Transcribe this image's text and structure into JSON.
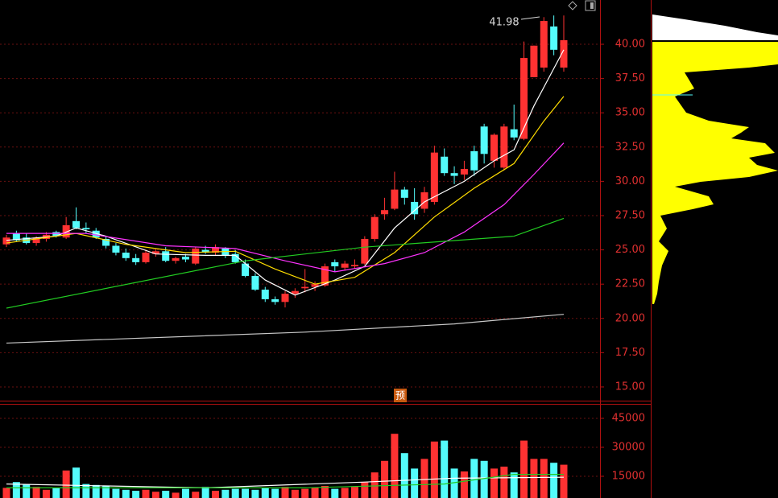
{
  "chart_data": {
    "type": "candlestick",
    "annotation": "41.98",
    "marker": "预",
    "up_color": "#ff3232",
    "down_color": "#54fcfc",
    "ylim": [
      14.0,
      43.23
    ],
    "yticks": [
      {
        "value": 15,
        "label": "15.00"
      },
      {
        "value": 17.5,
        "label": "17.50"
      },
      {
        "value": 20,
        "label": "20.00"
      },
      {
        "value": 22.5,
        "label": "22.50"
      },
      {
        "value": 25,
        "label": "25.00"
      },
      {
        "value": 27.5,
        "label": "27.50"
      },
      {
        "value": 30,
        "label": "30.00"
      },
      {
        "value": 32.5,
        "label": "32.50"
      },
      {
        "value": 35,
        "label": "35.00"
      },
      {
        "value": 37.5,
        "label": "37.50"
      },
      {
        "value": 40,
        "label": "40.00"
      }
    ],
    "grid": true,
    "open": [
      25.4,
      26.2,
      25.9,
      25.5,
      25.8,
      26.3,
      25.9,
      27.1,
      26.6,
      26.4,
      25.8,
      25.3,
      24.8,
      24.4,
      24.1,
      24.7,
      24.9,
      24.2,
      24.5,
      24.0,
      25.0,
      24.8,
      25.1,
      24.7,
      24.0,
      23.1,
      22.1,
      21.4,
      21.2,
      21.8,
      22.2,
      22.3,
      22.4,
      24.1,
      23.7,
      23.8,
      24.0,
      25.8,
      27.6,
      28.0,
      29.4,
      28.5,
      28.0,
      28.5,
      31.8,
      30.6,
      30.5,
      32.2,
      34.0,
      31.5,
      31.0,
      33.8,
      33.1,
      37.6,
      38.3,
      41.3,
      38.3
    ],
    "high": [
      26.1,
      26.4,
      26.2,
      26.0,
      26.3,
      26.4,
      27.4,
      28.1,
      27.0,
      26.6,
      26.0,
      25.5,
      25.1,
      24.7,
      25.0,
      25.1,
      25.2,
      24.5,
      24.7,
      25.2,
      25.3,
      25.4,
      25.2,
      25.0,
      24.3,
      23.3,
      22.3,
      21.6,
      22.0,
      22.2,
      23.6,
      22.7,
      24.0,
      24.3,
      24.2,
      24.3,
      26.0,
      27.6,
      28.8,
      30.7,
      29.6,
      29.5,
      29.6,
      32.6,
      32.4,
      31.1,
      31.5,
      32.6,
      34.2,
      33.5,
      34.2,
      35.6,
      40.2,
      39.9,
      41.98,
      42.1,
      42.1
    ],
    "low": [
      25.2,
      25.6,
      25.4,
      25.3,
      25.6,
      25.9,
      25.8,
      26.5,
      26.2,
      25.8,
      25.1,
      24.6,
      24.2,
      23.9,
      24.0,
      24.5,
      24.1,
      24.0,
      24.1,
      23.9,
      24.7,
      24.6,
      24.4,
      24.0,
      23.0,
      22.0,
      21.2,
      21.0,
      20.8,
      21.5,
      21.9,
      22.0,
      22.3,
      23.4,
      23.5,
      23.6,
      23.9,
      25.6,
      27.2,
      27.9,
      28.3,
      27.2,
      27.7,
      28.3,
      30.4,
      29.8,
      30.1,
      30.4,
      31.3,
      31.0,
      30.8,
      33.0,
      33.0,
      37.6,
      38.0,
      39.2,
      38.0
    ],
    "close": [
      25.9,
      25.7,
      25.5,
      25.9,
      26.1,
      26.0,
      26.8,
      26.6,
      26.5,
      25.9,
      25.3,
      24.8,
      24.4,
      24.1,
      24.8,
      24.9,
      24.2,
      24.4,
      24.3,
      25.1,
      24.8,
      25.2,
      24.6,
      24.1,
      23.1,
      22.1,
      21.4,
      21.2,
      21.8,
      22.0,
      22.3,
      22.5,
      23.8,
      23.8,
      24.0,
      23.9,
      25.8,
      27.4,
      27.9,
      29.4,
      28.8,
      27.6,
      29.2,
      32.1,
      30.6,
      30.4,
      30.9,
      30.8,
      32.0,
      33.4,
      34.0,
      33.2,
      39.0,
      39.9,
      41.7,
      39.6,
      40.3
    ],
    "lines": [
      {
        "color": "#ffffff",
        "x": [
          0,
          5,
          7,
          10,
          15,
          20,
          23,
          26,
          29,
          33,
          36,
          39,
          42,
          46,
          49,
          51,
          53,
          56
        ],
        "values": [
          25.7,
          26.0,
          26.6,
          26.0,
          24.7,
          24.6,
          24.6,
          22.8,
          21.7,
          22.8,
          23.8,
          26.6,
          28.5,
          30.0,
          31.5,
          32.3,
          35.5,
          39.6
        ]
      },
      {
        "color": "#ffdd00",
        "x": [
          0,
          7,
          12,
          18,
          23,
          27,
          31,
          35,
          39,
          43,
          47,
          51,
          54,
          56
        ],
        "values": [
          25.5,
          26.2,
          25.4,
          24.8,
          24.9,
          23.6,
          22.5,
          23.0,
          24.8,
          27.4,
          29.5,
          31.3,
          34.4,
          36.2
        ]
      },
      {
        "color": "#ff33ff",
        "x": [
          0,
          8,
          16,
          23,
          28,
          33,
          38,
          42,
          46,
          50,
          53,
          56
        ],
        "values": [
          26.2,
          26.2,
          25.3,
          25.1,
          24.2,
          23.4,
          24.0,
          24.8,
          26.3,
          28.3,
          30.5,
          32.8
        ]
      },
      {
        "color": "#22cc22",
        "x": [
          0,
          24,
          36,
          51,
          56
        ],
        "values": [
          20.75,
          24.2,
          25.2,
          26.0,
          27.3
        ]
      },
      {
        "color": "#c8c8c8",
        "x": [
          0,
          30,
          45,
          56
        ],
        "values": [
          18.2,
          19.0,
          19.6,
          20.3
        ]
      }
    ],
    "volume": {
      "ylim": [
        3750,
        52080
      ],
      "yticks": [
        15000,
        30000,
        45000
      ],
      "values": [
        9000,
        12000,
        11000,
        9500,
        8000,
        9000,
        18000,
        19500,
        11000,
        10500,
        10000,
        8500,
        8000,
        7500,
        8000,
        7000,
        7500,
        6500,
        8500,
        7000,
        9500,
        7500,
        8000,
        8500,
        8500,
        8000,
        9000,
        8500,
        9500,
        8000,
        8500,
        9000,
        10000,
        8500,
        9000,
        9500,
        12000,
        17000,
        23000,
        37000,
        27000,
        19000,
        24000,
        33000,
        33500,
        19000,
        17500,
        24000,
        23000,
        19000,
        20000,
        17000,
        33500,
        24000,
        24000,
        22000,
        21000
      ],
      "lines": [
        {
          "color": "#ffffff",
          "x": [
            0,
            20,
            36,
            45,
            56
          ],
          "values": [
            11000,
            9000,
            12000,
            14000,
            14500
          ]
        },
        {
          "color": "#22cc22",
          "x": [
            0,
            30,
            44,
            51,
            56
          ],
          "values": [
            9000,
            9000,
            11000,
            16000,
            16000
          ]
        }
      ]
    }
  }
}
